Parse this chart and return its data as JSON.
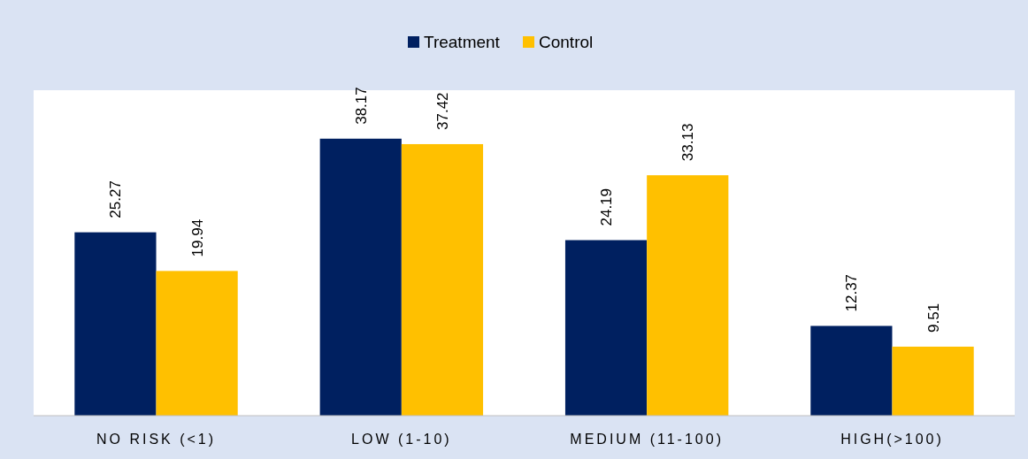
{
  "chart_data": {
    "type": "bar",
    "categories": [
      "NO RISK (<1)",
      "LOW (1-10)",
      "MEDIUM (11-100)",
      "HIGH(>100)"
    ],
    "series": [
      {
        "name": "Treatment",
        "color": "#002060",
        "values": [
          25.27,
          38.17,
          24.19,
          12.37
        ]
      },
      {
        "name": "Control",
        "color": "#ffc000",
        "values": [
          19.94,
          37.42,
          33.13,
          9.51
        ]
      }
    ],
    "data_labels": true,
    "legend": "top",
    "grid": false
  }
}
